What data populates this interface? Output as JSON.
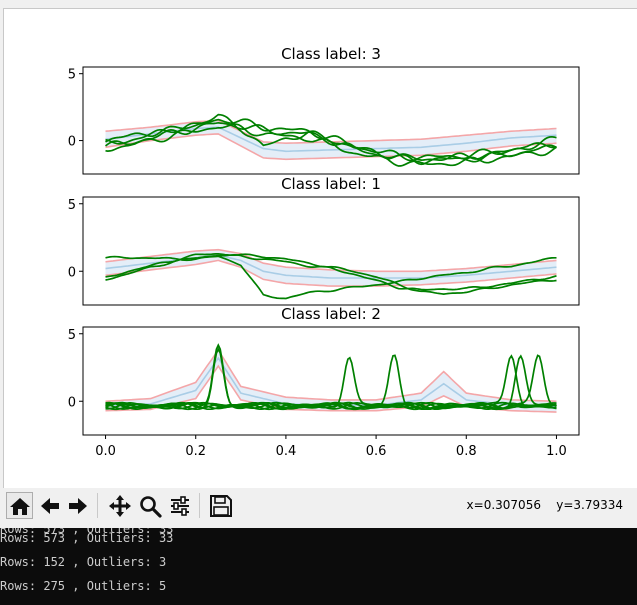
{
  "subplots": [
    {
      "title": "Class label: 3",
      "yticks": [
        "5",
        "0"
      ]
    },
    {
      "title": "Class label: 1",
      "yticks": [
        "5",
        "0"
      ]
    },
    {
      "title": "Class label: 2",
      "yticks": [
        "5",
        "0"
      ]
    }
  ],
  "xticks": [
    "0.0",
    "0.2",
    "0.4",
    "0.6",
    "0.8",
    "1.0"
  ],
  "toolbar": {
    "coords": "x=0.307056    y=3.79334",
    "buttons": [
      "home-icon",
      "back-arrow-icon",
      "forward-arrow-icon",
      "pan-icon",
      "zoom-icon",
      "configure-subplots-icon",
      "save-icon"
    ]
  },
  "console": {
    "cut_line": "Rows: 573 , Outliers: 33",
    "lines": [
      "Rows: 573 , Outliers: 33",
      "Rows: 152 , Outliers: 3",
      "Rows: 275 , Outliers: 5"
    ]
  },
  "colors": {
    "curve": "#008000",
    "band_edge": "#f4a6a8",
    "band_fill": "#e4eef8",
    "band_mean": "#a9cde6"
  },
  "chart_data": [
    {
      "type": "line",
      "title": "Class label: 3",
      "xlim": [
        -0.05,
        1.05
      ],
      "ylim": [
        -2.5,
        5.5
      ],
      "yticks": [
        5,
        0
      ],
      "xticks": [],
      "series": [
        {
          "x": [
            0,
            0.05,
            0.1,
            0.15,
            0.2,
            0.25,
            0.3,
            0.35,
            0.4,
            0.45,
            0.5,
            0.55,
            0.6,
            0.65,
            0.7,
            0.75,
            0.8,
            0.85,
            0.9,
            0.95,
            1.0
          ],
          "y": [
            -0.4,
            -0.2,
            0.2,
            0.6,
            0.9,
            1.3,
            1.1,
            0.8,
            0.6,
            0.5,
            0.0,
            -0.6,
            -1.0,
            -1.3,
            -1.5,
            -1.4,
            -1.4,
            -1.2,
            -1.0,
            -0.7,
            -0.5
          ]
        },
        {
          "x": [
            0,
            0.05,
            0.1,
            0.15,
            0.2,
            0.25,
            0.3,
            0.35,
            0.4,
            0.45,
            0.5,
            0.55,
            0.6,
            0.65,
            0.7,
            0.75,
            0.8,
            0.85,
            0.9,
            0.95,
            1.0
          ],
          "y": [
            -0.2,
            0.0,
            0.4,
            0.9,
            1.1,
            1.6,
            1.4,
            1.0,
            0.8,
            0.7,
            0.2,
            -0.4,
            -0.8,
            -1.1,
            -1.3,
            -1.2,
            -1.1,
            -0.9,
            -0.7,
            -0.4,
            -0.2
          ]
        },
        {
          "x": [
            0,
            0.05,
            0.1,
            0.15,
            0.2,
            0.25,
            0.3,
            0.35,
            0.4,
            0.45,
            0.5,
            0.55,
            0.6,
            0.65,
            0.7,
            0.75,
            0.8,
            0.85,
            0.9,
            0.95,
            1.0
          ],
          "y": [
            -0.6,
            -0.4,
            0.0,
            0.4,
            0.7,
            1.1,
            0.9,
            0.5,
            0.3,
            0.2,
            -0.3,
            -0.9,
            -1.3,
            -1.6,
            -1.8,
            -1.7,
            -1.6,
            -1.4,
            -1.2,
            -0.9,
            -0.7
          ]
        },
        {
          "x": [
            0,
            0.05,
            0.1,
            0.15,
            0.2,
            0.25,
            0.3,
            0.35,
            0.4,
            0.45,
            0.5,
            0.55,
            0.6,
            0.65,
            0.7,
            0.75,
            0.8,
            0.85,
            0.9,
            0.95,
            1.0
          ],
          "y": [
            0.0,
            0.3,
            0.6,
            0.8,
            1.2,
            1.8,
            1.0,
            -0.5,
            0.2,
            0.5,
            0.1,
            -0.5,
            -0.9,
            -1.2,
            -1.4,
            -1.3,
            -1.2,
            -1.0,
            -0.8,
            -0.3,
            0.1
          ]
        }
      ],
      "band": {
        "x": [
          0,
          0.1,
          0.2,
          0.25,
          0.3,
          0.35,
          0.4,
          0.5,
          0.6,
          0.7,
          0.8,
          0.9,
          1.0
        ],
        "mean": [
          0.1,
          0.5,
          0.9,
          1.0,
          0.2,
          -0.6,
          -0.8,
          -0.7,
          -0.6,
          -0.5,
          -0.2,
          0.2,
          0.4
        ],
        "upper": [
          0.7,
          1.0,
          1.4,
          1.5,
          0.7,
          -0.1,
          -0.2,
          -0.1,
          0.0,
          0.1,
          0.4,
          0.7,
          0.9
        ],
        "lower": [
          -0.5,
          0.0,
          0.4,
          0.5,
          -0.4,
          -1.3,
          -1.4,
          -1.3,
          -1.2,
          -1.1,
          -0.8,
          -0.4,
          -0.2
        ]
      }
    },
    {
      "type": "line",
      "title": "Class label: 1",
      "xlim": [
        -0.05,
        1.05
      ],
      "ylim": [
        -2.5,
        5.5
      ],
      "yticks": [
        5,
        0
      ],
      "xticks": [],
      "series": [
        {
          "x": [
            0,
            0.05,
            0.1,
            0.15,
            0.2,
            0.25,
            0.3,
            0.35,
            0.4,
            0.45,
            0.5,
            0.55,
            0.6,
            0.65,
            0.7,
            0.75,
            0.8,
            0.85,
            0.9,
            0.95,
            1.0
          ],
          "y": [
            1.0,
            1.0,
            1.0,
            0.9,
            0.9,
            1.1,
            0.5,
            -1.8,
            -2.0,
            -1.6,
            -1.4,
            -1.2,
            -1.0,
            -0.8,
            -0.5,
            -0.3,
            -0.1,
            0.2,
            0.4,
            0.7,
            1.0
          ]
        },
        {
          "x": [
            0,
            0.05,
            0.1,
            0.15,
            0.2,
            0.25,
            0.3,
            0.35,
            0.4,
            0.45,
            0.5,
            0.55,
            0.6,
            0.65,
            0.7,
            0.75,
            0.8,
            0.85,
            0.9,
            0.95,
            1.0
          ],
          "y": [
            -0.5,
            0.0,
            0.4,
            0.8,
            1.2,
            1.3,
            1.2,
            1.1,
            0.9,
            0.6,
            0.3,
            0.0,
            -0.4,
            -1.0,
            -1.5,
            -1.7,
            -1.5,
            -1.3,
            -1.0,
            -0.8,
            -0.6
          ]
        },
        {
          "x": [
            0,
            0.05,
            0.1,
            0.15,
            0.2,
            0.25,
            0.3,
            0.35,
            0.4,
            0.45,
            0.5,
            0.55,
            0.6,
            0.65,
            0.7,
            0.75,
            0.8,
            0.85,
            0.9,
            0.95,
            1.0
          ],
          "y": [
            -0.6,
            -0.2,
            0.3,
            0.7,
            1.0,
            1.2,
            1.1,
            0.9,
            0.7,
            0.4,
            0.2,
            -0.2,
            -0.7,
            -1.2,
            -1.4,
            -1.3,
            -1.3,
            -1.1,
            -0.9,
            -0.6,
            -0.4
          ]
        }
      ],
      "band": {
        "x": [
          0,
          0.1,
          0.2,
          0.25,
          0.3,
          0.35,
          0.4,
          0.5,
          0.6,
          0.7,
          0.8,
          0.9,
          1.0
        ],
        "mean": [
          0.2,
          0.6,
          1.0,
          1.2,
          0.8,
          0.0,
          -0.3,
          -0.5,
          -0.5,
          -0.5,
          -0.3,
          0.0,
          0.3
        ],
        "upper": [
          0.7,
          1.1,
          1.5,
          1.6,
          1.3,
          0.6,
          0.3,
          0.1,
          0.0,
          0.0,
          0.2,
          0.5,
          0.8
        ],
        "lower": [
          -0.3,
          0.1,
          0.5,
          0.8,
          0.3,
          -0.6,
          -0.9,
          -1.1,
          -1.1,
          -1.0,
          -0.8,
          -0.5,
          -0.2
        ]
      }
    },
    {
      "type": "line",
      "title": "Class label: 2",
      "xlim": [
        -0.05,
        1.05
      ],
      "ylim": [
        -2.5,
        5.5
      ],
      "yticks": [
        5,
        0
      ],
      "xticks": [
        0.0,
        0.2,
        0.4,
        0.6,
        0.8,
        1.0
      ],
      "peaks": [
        [
          0.25,
          4.2
        ],
        [
          0.25,
          3.9
        ],
        [
          0.54,
          3.4
        ],
        [
          0.64,
          3.5
        ],
        [
          0.9,
          3.5
        ],
        [
          0.92,
          3.4
        ],
        [
          0.96,
          3.4
        ]
      ],
      "band": {
        "x": [
          0,
          0.1,
          0.2,
          0.25,
          0.3,
          0.4,
          0.5,
          0.6,
          0.7,
          0.75,
          0.8,
          0.9,
          1.0
        ],
        "mean": [
          -0.3,
          -0.2,
          0.8,
          3.2,
          0.6,
          -0.2,
          -0.3,
          -0.3,
          0.1,
          1.3,
          0.1,
          -0.3,
          -0.4
        ],
        "upper": [
          0.0,
          0.2,
          1.4,
          3.8,
          1.1,
          0.3,
          0.1,
          0.1,
          0.6,
          2.2,
          0.6,
          0.1,
          0.0
        ],
        "lower": [
          -0.7,
          -0.6,
          0.2,
          2.6,
          0.1,
          -0.6,
          -0.7,
          -0.7,
          -0.4,
          0.4,
          -0.4,
          -0.7,
          -0.8
        ]
      }
    }
  ]
}
